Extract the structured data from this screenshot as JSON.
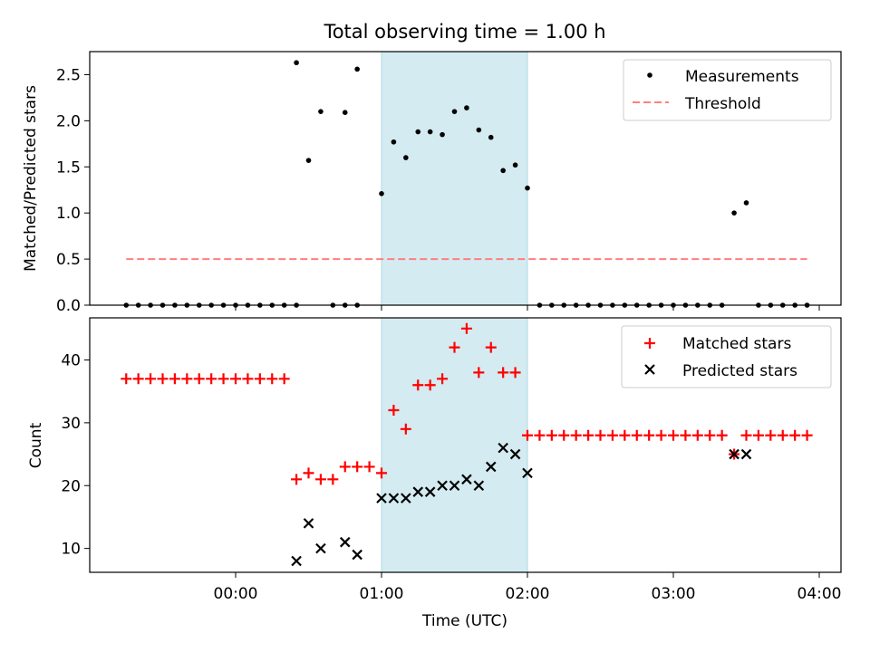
{
  "chart_data": {
    "title": "Total observing time = 1.00 h",
    "xlabel": "Time (UTC)",
    "x_ticks": [
      "00:00",
      "01:00",
      "02:00",
      "03:00",
      "04:00"
    ],
    "shaded_interval": [
      "01:00",
      "02:00"
    ],
    "colors": {
      "shade": "#d4ebf1",
      "measure": "#000000",
      "threshold": "#ff7f7f",
      "matched": "#ff0000",
      "predicted": "#000000"
    },
    "panels": [
      {
        "type": "scatter",
        "ylabel": "Matched/Predicted stars",
        "ylim": [
          0,
          2.75
        ],
        "y_ticks": [
          0.0,
          0.5,
          1.0,
          1.5,
          2.0,
          2.5
        ],
        "y_tick_labels": [
          "0.0",
          "0.5",
          "1.0",
          "1.5",
          "2.0",
          "2.5"
        ],
        "legend": {
          "placement": "upper right",
          "entries": [
            "Measurements",
            "Threshold"
          ]
        },
        "threshold": {
          "name": "Threshold",
          "y": 0.5,
          "x_range": [
            "-00:45",
            "03:55"
          ]
        },
        "series": [
          {
            "name": "Measurements",
            "marker": "dot",
            "x": [
              "-00:45",
              "-00:40",
              "-00:35",
              "-00:30",
              "-00:25",
              "-00:20",
              "-00:15",
              "-00:10",
              "-00:05",
              "00:00",
              "00:05",
              "00:10",
              "00:15",
              "00:20",
              "00:25",
              "00:40",
              "00:45",
              "00:50",
              "01:00",
              "01:05",
              "01:10",
              "01:15",
              "01:20",
              "01:25",
              "01:30",
              "01:35",
              "01:40",
              "01:45",
              "01:50",
              "01:55",
              "02:00",
              "02:05",
              "02:10",
              "02:15",
              "02:20",
              "02:25",
              "02:30",
              "02:35",
              "02:40",
              "02:45",
              "02:50",
              "02:55",
              "03:00",
              "03:05",
              "03:10",
              "03:15",
              "03:20",
              "03:25",
              "03:30",
              "03:35",
              "03:40",
              "03:45",
              "03:50",
              "03:55"
            ],
            "y": [
              0,
              0,
              0,
              0,
              0,
              0,
              0,
              0,
              0,
              0,
              0,
              0,
              0,
              0,
              0,
              0,
              0,
              0,
              1.21,
              1.77,
              1.6,
              1.88,
              1.88,
              1.85,
              2.1,
              2.14,
              1.9,
              1.82,
              1.46,
              1.52,
              1.27,
              0,
              0,
              0,
              0,
              0,
              0,
              0,
              0,
              0,
              0,
              0,
              0,
              0,
              0,
              0,
              0,
              1.0,
              1.11,
              0,
              0,
              0,
              0,
              0
            ]
          },
          {
            "name": "Measurements-upper",
            "marker": "dot",
            "x": [
              "00:25",
              "00:30",
              "00:35",
              "00:45",
              "00:50"
            ],
            "y": [
              2.63,
              1.57,
              2.1,
              2.09,
              2.56
            ]
          }
        ]
      },
      {
        "type": "scatter",
        "ylabel": "Count",
        "ylim": [
          6.2,
          46.7
        ],
        "y_ticks": [
          10,
          20,
          30,
          40
        ],
        "y_tick_labels": [
          "10",
          "20",
          "30",
          "40"
        ],
        "legend": {
          "placement": "upper right",
          "entries": [
            "Matched stars",
            "Predicted stars"
          ]
        },
        "series": [
          {
            "name": "Matched stars",
            "marker": "plus",
            "x": [
              "-00:45",
              "-00:40",
              "-00:35",
              "-00:30",
              "-00:25",
              "-00:20",
              "-00:15",
              "-00:10",
              "-00:05",
              "00:00",
              "00:05",
              "00:10",
              "00:15",
              "00:20",
              "00:25",
              "00:30",
              "00:35",
              "00:40",
              "00:45",
              "00:50",
              "00:55",
              "01:00",
              "01:05",
              "01:10",
              "01:15",
              "01:20",
              "01:25",
              "01:30",
              "01:35",
              "01:40",
              "01:45",
              "01:50",
              "01:55",
              "02:00",
              "02:05",
              "02:10",
              "02:15",
              "02:20",
              "02:25",
              "02:30",
              "02:35",
              "02:40",
              "02:45",
              "02:50",
              "02:55",
              "03:00",
              "03:05",
              "03:10",
              "03:15",
              "03:20",
              "03:25",
              "03:30",
              "03:35",
              "03:40",
              "03:45",
              "03:50",
              "03:55"
            ],
            "y": [
              37,
              37,
              37,
              37,
              37,
              37,
              37,
              37,
              37,
              37,
              37,
              37,
              37,
              37,
              21,
              22,
              21,
              21,
              23,
              23,
              23,
              22,
              32,
              29,
              36,
              36,
              37,
              42,
              45,
              38,
              42,
              38,
              38,
              28,
              28,
              28,
              28,
              28,
              28,
              28,
              28,
              28,
              28,
              28,
              28,
              28,
              28,
              28,
              28,
              28,
              25,
              28,
              28,
              28,
              28,
              28,
              28
            ]
          },
          {
            "name": "Predicted stars",
            "marker": "x",
            "x": [
              "00:25",
              "00:30",
              "00:35",
              "00:45",
              "00:50",
              "01:00",
              "01:05",
              "01:10",
              "01:15",
              "01:20",
              "01:25",
              "01:30",
              "01:35",
              "01:40",
              "01:45",
              "01:50",
              "01:55",
              "02:00",
              "03:25",
              "03:30"
            ],
            "y": [
              8,
              14,
              10,
              11,
              9,
              18,
              18,
              18,
              19,
              19,
              20,
              20,
              21,
              20,
              23,
              26,
              25,
              22,
              25,
              25
            ]
          }
        ]
      }
    ]
  }
}
